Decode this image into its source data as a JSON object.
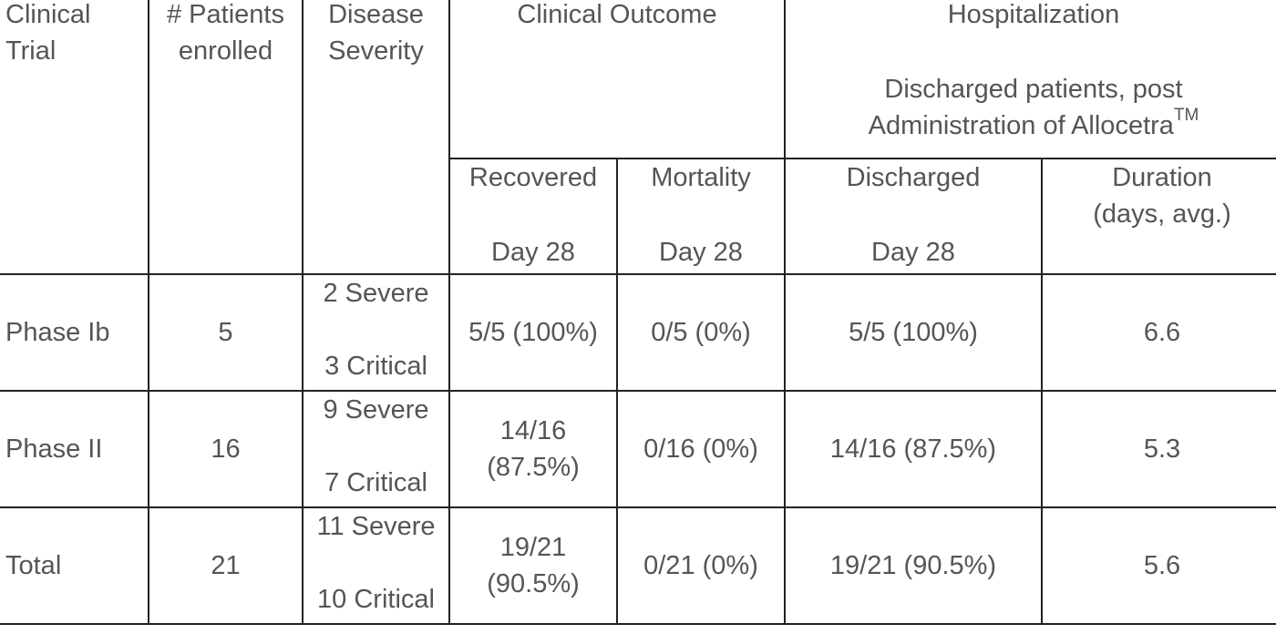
{
  "header": {
    "clinical_trial_1": "Clinical",
    "clinical_trial_2": "Trial",
    "patients_1": "# Patients",
    "patients_2": "enrolled",
    "severity_1": "Disease",
    "severity_2": "Severity",
    "clinical_outcome": "Clinical Outcome",
    "hospitalization": "Hospitalization",
    "hosp_note_1": "Discharged patients, post",
    "hosp_note_2": "Administration of Allocetra",
    "hosp_note_tm": "TM",
    "recovered": "Recovered",
    "recovered_day": "Day 28",
    "mortality": "Mortality",
    "mortality_day": "Day 28",
    "discharged": "Discharged",
    "discharged_day": "Day 28",
    "duration_1": "Duration",
    "duration_2": "(days, avg.)"
  },
  "rows": [
    {
      "trial": "Phase Ib",
      "patients": "5",
      "severe": "2 Severe",
      "critical": "3 Critical",
      "recovered_1": "5/5 (100%)",
      "recovered_2": "",
      "mortality": "0/5 (0%)",
      "discharged": "5/5 (100%)",
      "duration": "6.6"
    },
    {
      "trial": "Phase II",
      "patients": "16",
      "severe": "9 Severe",
      "critical": "7 Critical",
      "recovered_1": "14/16",
      "recovered_2": "(87.5%)",
      "mortality": "0/16 (0%)",
      "discharged": "14/16 (87.5%)",
      "duration": "5.3"
    },
    {
      "trial": "Total",
      "patients": "21",
      "severe": "11 Severe",
      "critical": "10 Critical",
      "recovered_1": "19/21",
      "recovered_2": "(90.5%)",
      "mortality": "0/21 (0%)",
      "discharged": "19/21 (90.5%)",
      "duration": "5.6"
    }
  ],
  "colors": {
    "text": "#555555",
    "border": "#222222",
    "background": "#ffffff"
  }
}
